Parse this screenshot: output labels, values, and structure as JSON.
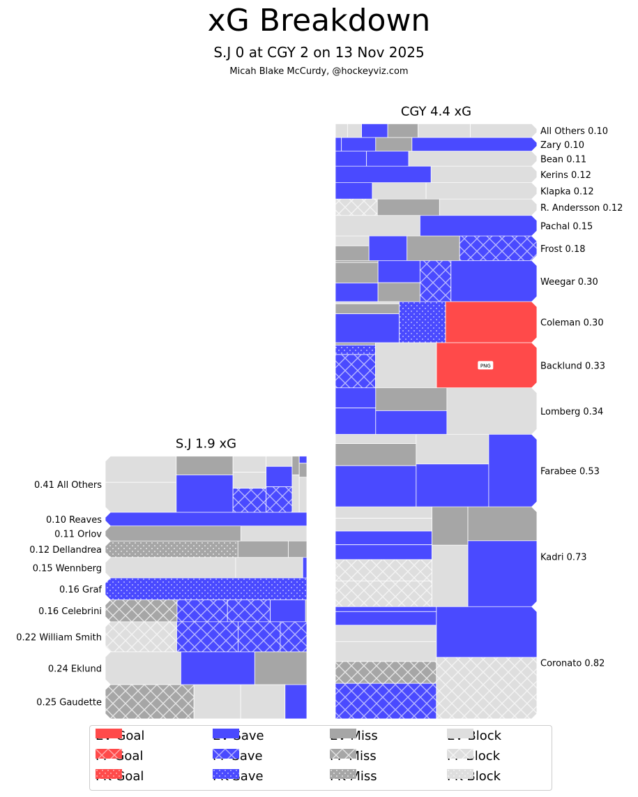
{
  "header": {
    "title": "xG Breakdown",
    "subtitle": "S.J 0 at CGY 2 on 13 Nov 2025",
    "credit": "Micah Blake McCurdy, @hockeyviz.com"
  },
  "colors": {
    "goal": "#ff4a4a",
    "save": "#4a4aff",
    "miss": "#a6a6a6",
    "block": "#dedede",
    "highlight": "#a34ca6"
  },
  "chart_data": {
    "type": "treemap",
    "title": "xG Breakdown",
    "legend": {
      "placement": "bottom",
      "entries": [
        "EV Goal",
        "PP Goal",
        "PK Goal",
        "EV Save",
        "PP Save",
        "PK Save",
        "EV Miss",
        "PP Miss",
        "PK Miss",
        "EV Block",
        "PP Block",
        "PK Block"
      ]
    },
    "teams": [
      {
        "name": "S.J",
        "label": "S.J 1.9 xG",
        "total_xg": 1.9,
        "side": "left",
        "players": [
          {
            "name": "All Others",
            "label": "0.41 All Others",
            "xg": 0.41,
            "columns": [
              [
                [
                  "EV Block",
                  0.07
                ],
                [
                  "EV Block",
                  0.08
                ]
              ],
              [
                [
                  "EV Miss",
                  0.04
                ],
                [
                  "EV Save",
                  0.08
                ]
              ],
              [
                [
                  "EV Block",
                  0.02
                ],
                [
                  "EV Block",
                  0.02
                ],
                [
                  "PP Save",
                  0.03
                ]
              ],
              [
                [
                  "EV Block",
                  0.01
                ],
                [
                  "EV Save",
                  0.02
                ],
                [
                  "PP Save",
                  0.025
                ]
              ],
              [
                [
                  "EV Miss",
                  0.005
                ],
                [
                  "EV Block",
                  0.01
                ]
              ],
              [
                [
                  "EV Save",
                  0.002
                ],
                [
                  "EV Miss",
                  0.004
                ],
                [
                  "EV Block",
                  0.01
                ]
              ]
            ]
          },
          {
            "name": "Reaves",
            "label": "0.10 Reaves",
            "xg": 0.1,
            "columns": [
              [
                [
                  "EV Save",
                  0.1
                ]
              ]
            ]
          },
          {
            "name": "Orlov",
            "label": "0.11 Orlov",
            "xg": 0.11,
            "columns": [
              [
                [
                  "EV Miss",
                  0.074
                ]
              ],
              [
                [
                  "EV Block",
                  0.036
                ]
              ]
            ]
          },
          {
            "name": "Dellandrea",
            "label": "0.12 Dellandrea",
            "xg": 0.12,
            "columns": [
              [
                [
                  "PK Miss",
                  0.079
                ]
              ],
              [
                [
                  "EV Miss",
                  0.03
                ]
              ],
              [
                [
                  "EV Miss",
                  0.011
                ]
              ]
            ]
          },
          {
            "name": "Wennberg",
            "label": "0.15 Wennberg",
            "xg": 0.15,
            "columns": [
              [
                [
                  "EV Block",
                  0.097
                ]
              ],
              [
                [
                  "EV Block",
                  0.05
                ]
              ],
              [
                [
                  "EV Save",
                  0.003
                ]
              ]
            ]
          },
          {
            "name": "Graf",
            "label": "0.16 Graf",
            "xg": 0.16,
            "columns": [
              [
                [
                  "PK Save",
                  0.16
                ]
              ]
            ]
          },
          {
            "name": "Celebrini",
            "label": "0.16 Celebrini",
            "xg": 0.16,
            "columns": [
              [
                [
                  "PP Miss",
                  0.057
                ]
              ],
              [
                [
                  "PP Save",
                  0.04
                ]
              ],
              [
                [
                  "PP Save",
                  0.034
                ]
              ],
              [
                [
                  "EV Save",
                  0.028
                ]
              ],
              [
                [
                  "EV Miss",
                  0.001
                ]
              ]
            ]
          },
          {
            "name": "William Smith",
            "label": "0.22 William Smith",
            "xg": 0.22,
            "columns": [
              [
                [
                  "PP Block",
                  0.078
                ]
              ],
              [
                [
                  "PP Save",
                  0.067
                ]
              ],
              [
                [
                  "PP Save",
                  0.046
                ]
              ],
              [
                [
                  "PP Save",
                  0.029
                ]
              ]
            ]
          },
          {
            "name": "Eklund",
            "label": "0.24 Eklund",
            "xg": 0.24,
            "columns": [
              [
                [
                  "EV Block",
                  0.09
                ]
              ],
              [
                [
                  "EV Save",
                  0.088
                ]
              ],
              [
                [
                  "EV Miss",
                  0.062
                ]
              ]
            ]
          },
          {
            "name": "Gaudette",
            "label": "0.25 Gaudette",
            "xg": 0.25,
            "columns": [
              [
                [
                  "PP Miss",
                  0.11
                ]
              ],
              [
                [
                  "EV Block",
                  0.058
                ]
              ],
              [
                [
                  "EV Block",
                  0.055
                ]
              ],
              [
                [
                  "EV Save",
                  0.027
                ]
              ]
            ]
          }
        ]
      },
      {
        "name": "CGY",
        "label": "CGY 4.4 xG",
        "total_xg": 4.4,
        "side": "right",
        "players": [
          {
            "name": "All Others",
            "label": "All Others 0.10",
            "xg": 0.1,
            "columns": [
              [
                [
                  "EV Block",
                  0.006
                ]
              ],
              [
                [
                  "EV Block",
                  0.007
                ]
              ],
              [
                [
                  "EV Save",
                  0.013
                ]
              ],
              [
                [
                  "EV Miss",
                  0.015
                ]
              ],
              [
                [
                  "EV Block",
                  0.026
                ]
              ],
              [
                [
                  "EV Block",
                  0.033
                ]
              ]
            ]
          },
          {
            "name": "Zary",
            "label": "Zary 0.10",
            "xg": 0.1,
            "columns": [
              [
                [
                  "EV Save",
                  0.003
                ]
              ],
              [
                [
                  "EV Save",
                  0.017
                ]
              ],
              [
                [
                  "EV Miss",
                  0.018
                ]
              ],
              [
                [
                  "EV Save",
                  0.062
                ]
              ]
            ]
          },
          {
            "name": "Bean",
            "label": "Bean 0.11",
            "xg": 0.11,
            "columns": [
              [
                [
                  "EV Save",
                  0.017
                ]
              ],
              [
                [
                  "EV Save",
                  0.023
                ]
              ],
              [
                [
                  "EV Block",
                  0.07
                ]
              ]
            ]
          },
          {
            "name": "Kerins",
            "label": "Kerins 0.12",
            "xg": 0.12,
            "columns": [
              [
                [
                  "EV Save",
                  0.057
                ]
              ],
              [
                [
                  "EV Block",
                  0.063
                ]
              ]
            ]
          },
          {
            "name": "Klapka",
            "label": "Klapka 0.12",
            "xg": 0.12,
            "columns": [
              [
                [
                  "EV Save",
                  0.022
                ]
              ],
              [
                [
                  "EV Block",
                  0.032
                ]
              ],
              [
                [
                  "EV Block",
                  0.066
                ]
              ]
            ]
          },
          {
            "name": "R. Andersson",
            "label": "R. Andersson 0.12",
            "xg": 0.12,
            "columns": [
              [
                [
                  "PP Block",
                  0.025
                ]
              ],
              [
                [
                  "EV Miss",
                  0.037
                ]
              ],
              [
                [
                  "EV Block",
                  0.058
                ]
              ]
            ]
          },
          {
            "name": "Pachal",
            "label": "Pachal 0.15",
            "xg": 0.15,
            "columns": [
              [
                [
                  "EV Block",
                  0.063
                ]
              ],
              [
                [
                  "EV Save",
                  0.087
                ]
              ]
            ]
          },
          {
            "name": "Frost",
            "label": "Frost 0.18",
            "xg": 0.18,
            "columns": [
              [
                [
                  "EV Block",
                  0.012
                ],
                [
                  "EV Miss",
                  0.018
                ]
              ],
              [
                [
                  "EV Save",
                  0.034
                ]
              ],
              [
                [
                  "EV Miss",
                  0.047
                ]
              ],
              [
                [
                  "PP Save",
                  0.069
                ]
              ]
            ]
          },
          {
            "name": "Weegar",
            "label": "Weegar 0.30",
            "xg": 0.3,
            "columns": [
              [
                [
                  "EV Miss",
                  0.003
                ],
                [
                  "EV Miss",
                  0.033
                ],
                [
                  "EV Save",
                  0.03
                ]
              ],
              [
                [
                  "EV Save",
                  0.035
                ],
                [
                  "EV Miss",
                  0.03
                ]
              ],
              [
                [
                  "PP Save",
                  0.048
                ]
              ],
              [
                [
                  "EV Save",
                  0.133
                ]
              ]
            ]
          },
          {
            "name": "Coleman",
            "label": "Coleman 0.30",
            "xg": 0.3,
            "columns": [
              [
                [
                  "EV Block",
                  0.005
                ],
                [
                  "EV Miss",
                  0.023
                ],
                [
                  "EV Save",
                  0.067
                ]
              ],
              [
                [
                  "PK Save",
                  0.069
                ]
              ],
              [
                [
                  "EV Goal",
                  0.136
                ]
              ]
            ]
          },
          {
            "name": "Backlund",
            "label": "Backlund 0.33",
            "xg": 0.33,
            "highlight": "PNG",
            "columns": [
              [
                [
                  "EV Miss",
                  0.003
                ],
                [
                  "PK Save",
                  0.012
                ],
                [
                  "PP Save",
                  0.042
                ]
              ],
              [
                [
                  "EV Block",
                  0.087
                ]
              ],
              [
                [
                  "EV Goal",
                  0.143
                ]
              ]
            ]
          },
          {
            "name": "Lomberg",
            "label": "Lomberg 0.34",
            "xg": 0.34,
            "columns": [
              [
                [
                  "EV Save",
                  0.026
                ],
                [
                  "EV Save",
                  0.034
                ]
              ],
              [
                [
                  "EV Miss",
                  0.052
                ],
                [
                  "EV Save",
                  0.054
                ]
              ],
              [
                [
                  "EV Block",
                  0.134
                ]
              ]
            ]
          },
          {
            "name": "Farabee",
            "label": "Farabee 0.53",
            "xg": 0.53,
            "columns": [
              [
                [
                  "EV Block",
                  0.035
                ],
                [
                  "EV Miss",
                  0.084
                ],
                [
                  "EV Save",
                  0.156
                ]
              ],
              [
                [
                  "EV Block",
                  0.101
                ],
                [
                  "EV Save",
                  0.146
                ]
              ]
            ],
            "extra": [
              [
                "EV Save",
                0.164
              ]
            ]
          },
          {
            "name": "Kadri",
            "label": "Kadri 0.73",
            "xg": 0.73,
            "columns": [
              [
                [
                  "EV Block",
                  0.04
                ],
                [
                  "EV Block",
                  0.045
                ],
                [
                  "EV Save",
                  0.048
                ],
                [
                  "EV Save",
                  0.052
                ],
                [
                  "PP Block",
                  0.075
                ],
                [
                  "PP Block",
                  0.09
                ]
              ],
              [
                [
                  "EV Miss",
                  0.05
                ],
                [
                  "EV Block",
                  0.08
                ]
              ],
              [
                [
                  "EV Miss",
                  0.085
                ],
                [
                  "EV Save",
                  0.165
                ]
              ]
            ]
          },
          {
            "name": "Coronato",
            "label": "Coronato 0.82",
            "xg": 0.82,
            "columns": [
              [
                [
                  "EV Save",
                  0.018
                ],
                [
                  "EV Save",
                  0.05
                ],
                [
                  "EV Block",
                  0.06
                ],
                [
                  "EV Block",
                  0.073
                ],
                [
                  "PP Miss",
                  0.08
                ],
                [
                  "PP Save",
                  0.13
                ]
              ],
              [
                [
                  "EV Save",
                  0.185
                ],
                [
                  "PP Block",
                  0.224
                ]
              ]
            ]
          }
        ]
      }
    ]
  }
}
